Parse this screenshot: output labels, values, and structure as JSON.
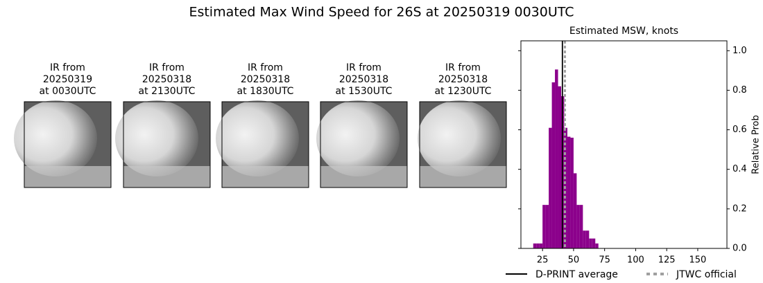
{
  "title": "Estimated Max Wind Speed for 26S at 20250319 0030UTC",
  "panels": [
    {
      "lines": [
        "IR from",
        "20250319",
        "at 0030UTC"
      ]
    },
    {
      "lines": [
        "IR from",
        "20250318",
        "at 2130UTC"
      ]
    },
    {
      "lines": [
        "IR from",
        "20250318",
        "at 1830UTC"
      ]
    },
    {
      "lines": [
        "IR from",
        "20250318",
        "at 1530UTC"
      ]
    },
    {
      "lines": [
        "IR from",
        "20250318",
        "at 1230UTC"
      ]
    }
  ],
  "chart_data": {
    "type": "histogram",
    "title": "Estimated MSW, knots",
    "y_label": "Relative Prob",
    "color": "#8b008b",
    "bins": [
      17.5,
      20,
      22.5,
      25,
      27.5,
      30,
      32.5,
      35,
      37.5,
      40,
      42.5,
      45,
      47.5,
      50,
      52.5,
      55,
      57.5,
      60,
      62.5,
      65,
      67.5,
      70
    ],
    "values": [
      0.025,
      0.025,
      0.025,
      0.22,
      0.22,
      0.61,
      0.84,
      0.905,
      0.82,
      0.77,
      0.61,
      0.565,
      0.56,
      0.38,
      0.22,
      0.22,
      0.09,
      0.09,
      0.05,
      0.05,
      0.025
    ],
    "xlim": [
      7.6,
      173.5
    ],
    "ylim": [
      0,
      1.05
    ],
    "xticks": [
      25,
      50,
      75,
      100,
      125,
      150
    ],
    "yticks": [
      {
        "value": 0,
        "label": "0.0"
      },
      {
        "value": 0.2,
        "label": "0.2"
      },
      {
        "value": 0.4,
        "label": "0.4"
      },
      {
        "value": 0.6,
        "label": "0.6"
      },
      {
        "value": 0.8,
        "label": "0.8"
      },
      {
        "value": 1,
        "label": "1.0"
      }
    ],
    "lines": [
      {
        "name": "D-PRINT average",
        "value": 41,
        "color": "#000000",
        "style": "solid"
      },
      {
        "name": "JTWC official",
        "value": 43,
        "color": "#a0a0a0",
        "style": "dotted"
      }
    ]
  }
}
